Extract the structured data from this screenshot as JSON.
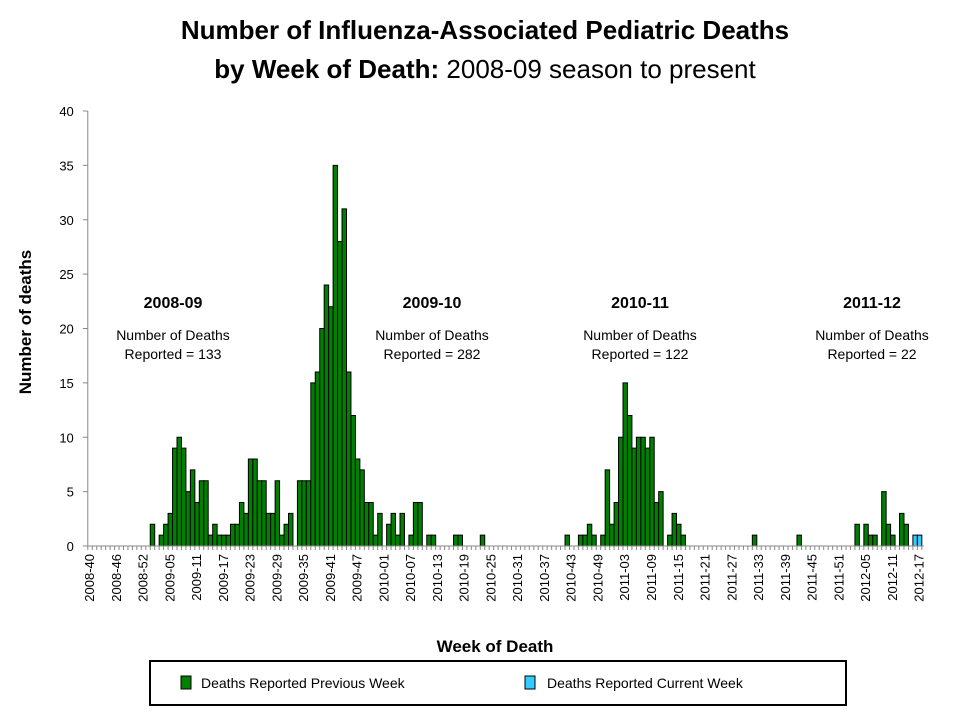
{
  "chart_data": {
    "type": "bar",
    "title": "Number of Influenza-Associated Pediatric Deaths",
    "subtitle_bold": "by Week of Death:",
    "subtitle": " 2008-09 season to present",
    "xlabel": "Week of Death",
    "ylabel": "Number of deaths",
    "ylim": [
      0,
      40
    ],
    "yticks": [
      "0",
      "5",
      "10",
      "15",
      "20",
      "25",
      "30",
      "35",
      "40"
    ],
    "grid": false,
    "legend_position": "bottom",
    "categories": [
      "2008-40",
      "2008-41",
      "2008-42",
      "2008-43",
      "2008-44",
      "2008-45",
      "2008-46",
      "2008-47",
      "2008-48",
      "2008-49",
      "2008-50",
      "2008-51",
      "2008-52",
      "2008-53",
      "2009-01",
      "2009-02",
      "2009-03",
      "2009-04",
      "2009-05",
      "2009-06",
      "2009-07",
      "2009-08",
      "2009-09",
      "2009-10",
      "2009-11",
      "2009-12",
      "2009-13",
      "2009-14",
      "2009-15",
      "2009-16",
      "2009-17",
      "2009-18",
      "2009-19",
      "2009-20",
      "2009-21",
      "2009-22",
      "2009-23",
      "2009-24",
      "2009-25",
      "2009-26",
      "2009-27",
      "2009-28",
      "2009-29",
      "2009-30",
      "2009-31",
      "2009-32",
      "2009-33",
      "2009-34",
      "2009-35",
      "2009-36",
      "2009-37",
      "2009-38",
      "2009-39",
      "2009-40",
      "2009-41",
      "2009-42",
      "2009-43",
      "2009-44",
      "2009-45",
      "2009-46",
      "2009-47",
      "2009-48",
      "2009-49",
      "2009-50",
      "2009-51",
      "2009-52",
      "2010-01",
      "2010-02",
      "2010-03",
      "2010-04",
      "2010-05",
      "2010-06",
      "2010-07",
      "2010-08",
      "2010-09",
      "2010-10",
      "2010-11",
      "2010-12",
      "2010-13",
      "2010-14",
      "2010-15",
      "2010-16",
      "2010-17",
      "2010-18",
      "2010-19",
      "2010-20",
      "2010-21",
      "2010-22",
      "2010-23",
      "2010-24",
      "2010-25",
      "2010-26",
      "2010-27",
      "2010-28",
      "2010-29",
      "2010-30",
      "2010-31",
      "2010-32",
      "2010-33",
      "2010-34",
      "2010-35",
      "2010-36",
      "2010-37",
      "2010-38",
      "2010-39",
      "2010-40",
      "2010-41",
      "2010-42",
      "2010-43",
      "2010-44",
      "2010-45",
      "2010-46",
      "2010-47",
      "2010-48",
      "2010-49",
      "2010-50",
      "2010-51",
      "2010-52",
      "2011-01",
      "2011-02",
      "2011-03",
      "2011-04",
      "2011-05",
      "2011-06",
      "2011-07",
      "2011-08",
      "2011-09",
      "2011-10",
      "2011-11",
      "2011-12",
      "2011-13",
      "2011-14",
      "2011-15",
      "2011-16",
      "2011-17",
      "2011-18",
      "2011-19",
      "2011-20",
      "2011-21",
      "2011-22",
      "2011-23",
      "2011-24",
      "2011-25",
      "2011-26",
      "2011-27",
      "2011-28",
      "2011-29",
      "2011-30",
      "2011-31",
      "2011-32",
      "2011-33",
      "2011-34",
      "2011-35",
      "2011-36",
      "2011-37",
      "2011-38",
      "2011-39",
      "2011-40",
      "2011-41",
      "2011-42",
      "2011-43",
      "2011-44",
      "2011-45",
      "2011-46",
      "2011-47",
      "2011-48",
      "2011-49",
      "2011-50",
      "2011-51",
      "2011-52",
      "2012-01",
      "2012-02",
      "2012-03",
      "2012-04",
      "2012-05",
      "2012-06",
      "2012-07",
      "2012-08",
      "2012-09",
      "2012-10",
      "2012-11",
      "2012-12",
      "2012-13",
      "2012-14",
      "2012-15",
      "2012-16",
      "2012-17"
    ],
    "xtick_every": 6,
    "series": [
      {
        "name": "Deaths Reported Previous Week",
        "color": "#008000",
        "values": [
          0,
          0,
          0,
          0,
          0,
          0,
          0,
          0,
          0,
          0,
          0,
          0,
          0,
          0,
          2,
          0,
          1,
          2,
          3,
          9,
          10,
          9,
          5,
          7,
          4,
          6,
          6,
          1,
          2,
          1,
          1,
          1,
          2,
          2,
          4,
          3,
          8,
          8,
          6,
          6,
          3,
          3,
          6,
          1,
          2,
          3,
          0,
          6,
          6,
          6,
          15,
          16,
          20,
          24,
          22,
          35,
          28,
          31,
          16,
          12,
          8,
          7,
          4,
          4,
          1,
          3,
          0,
          2,
          3,
          1,
          3,
          0,
          1,
          4,
          4,
          0,
          1,
          1,
          0,
          0,
          0,
          0,
          1,
          1,
          0,
          0,
          0,
          0,
          1,
          0,
          0,
          0,
          0,
          0,
          0,
          0,
          0,
          0,
          0,
          0,
          0,
          0,
          0,
          0,
          0,
          0,
          0,
          1,
          0,
          0,
          1,
          1,
          2,
          1,
          0,
          1,
          7,
          2,
          4,
          10,
          15,
          12,
          9,
          10,
          10,
          9,
          10,
          4,
          5,
          0,
          1,
          3,
          2,
          1,
          0,
          0,
          0,
          0,
          0,
          0,
          0,
          0,
          0,
          0,
          0,
          0,
          0,
          0,
          0,
          1,
          0,
          0,
          0,
          0,
          0,
          0,
          0,
          0,
          0,
          1,
          0,
          0,
          0,
          0,
          0,
          0,
          0,
          0,
          0,
          0,
          0,
          0,
          2,
          0,
          2,
          1,
          1,
          0,
          5,
          2,
          1,
          0,
          3,
          2,
          0,
          0,
          0
        ]
      },
      {
        "name": "Deaths Reported Current Week",
        "color": "#33CCFF",
        "values": [
          0,
          0,
          0,
          0,
          0,
          0,
          0,
          0,
          0,
          0,
          0,
          0,
          0,
          0,
          0,
          0,
          0,
          0,
          0,
          0,
          0,
          0,
          0,
          0,
          0,
          0,
          0,
          0,
          0,
          0,
          0,
          0,
          0,
          0,
          0,
          0,
          0,
          0,
          0,
          0,
          0,
          0,
          0,
          0,
          0,
          0,
          0,
          0,
          0,
          0,
          0,
          0,
          0,
          0,
          0,
          0,
          0,
          0,
          0,
          0,
          0,
          0,
          0,
          0,
          0,
          0,
          0,
          0,
          0,
          0,
          0,
          0,
          0,
          0,
          0,
          0,
          0,
          0,
          0,
          0,
          0,
          0,
          0,
          0,
          0,
          0,
          0,
          0,
          0,
          0,
          0,
          0,
          0,
          0,
          0,
          0,
          0,
          0,
          0,
          0,
          0,
          0,
          0,
          0,
          0,
          0,
          0,
          0,
          0,
          0,
          0,
          0,
          0,
          0,
          0,
          0,
          0,
          0,
          0,
          0,
          0,
          0,
          0,
          0,
          0,
          0,
          0,
          0,
          0,
          0,
          0,
          0,
          0,
          0,
          0,
          0,
          0,
          0,
          0,
          0,
          0,
          0,
          0,
          0,
          0,
          0,
          0,
          0,
          0,
          0,
          0,
          0,
          0,
          0,
          0,
          0,
          0,
          0,
          0,
          0,
          0,
          0,
          0,
          0,
          0,
          0,
          0,
          0,
          0,
          0,
          0,
          0,
          0,
          0,
          0,
          0,
          0,
          0,
          0,
          0,
          0,
          0,
          0,
          0,
          0,
          1,
          1
        ]
      }
    ],
    "annotations": [
      {
        "season": "2008-09",
        "line1": "Number of Deaths",
        "line2": "Reported = 133"
      },
      {
        "season": "2009-10",
        "line1": "Number of Deaths",
        "line2": "Reported = 282"
      },
      {
        "season": "2010-11",
        "line1": "Number of Deaths",
        "line2": "Reported = 122"
      },
      {
        "season": "2011-12",
        "line1": "Number of Deaths",
        "line2": "Reported = 22"
      }
    ]
  }
}
